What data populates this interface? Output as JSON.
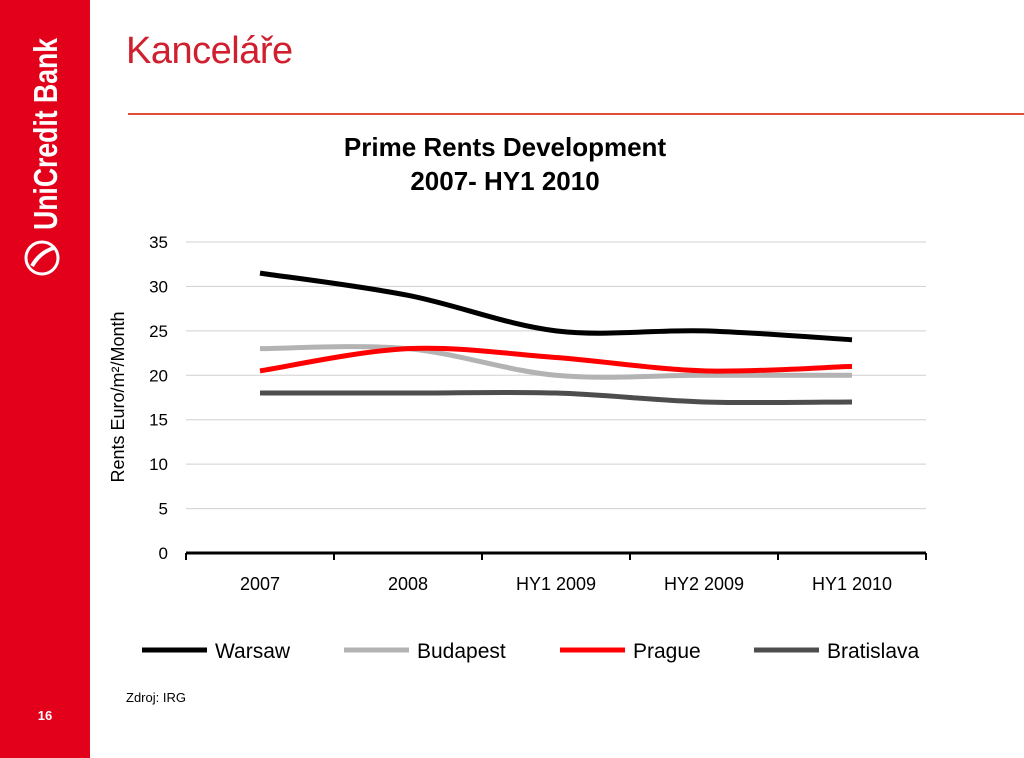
{
  "brand": {
    "name": "UniCredit Bank",
    "logo": "unicredit-logo-icon"
  },
  "slide": {
    "title": "Kanceláře",
    "page_number": "16",
    "source": "Zdroj: IRG"
  },
  "colors": {
    "sidebar": "#e2001a",
    "title": "#d01f2e",
    "rule": "#e34b3a"
  },
  "chart_data": {
    "type": "line",
    "title": "Prime Rents Development",
    "subtitle": "2007- HY1 2010",
    "ylabel": "Rents Euro/m²/Month",
    "xlabel": "",
    "categories": [
      "2007",
      "2008",
      "HY1 2009",
      "HY2 2009",
      "HY1 2010"
    ],
    "ylim": [
      0,
      35
    ],
    "yticks": [
      "0",
      "5",
      "10",
      "15",
      "20",
      "25",
      "30",
      "35"
    ],
    "grid": true,
    "legend": "bottom",
    "series": [
      {
        "name": "Warsaw",
        "values": [
          31.5,
          29,
          25,
          25,
          24
        ],
        "color": "#000000"
      },
      {
        "name": "Budapest",
        "values": [
          23,
          23,
          20,
          20,
          20
        ],
        "color": "#b3b3b3"
      },
      {
        "name": "Prague",
        "values": [
          20.5,
          23,
          22,
          20.5,
          21
        ],
        "color": "#ff0000"
      },
      {
        "name": "Bratislava",
        "values": [
          18,
          18,
          18,
          17,
          17
        ],
        "color": "#4d4d4d"
      }
    ]
  }
}
